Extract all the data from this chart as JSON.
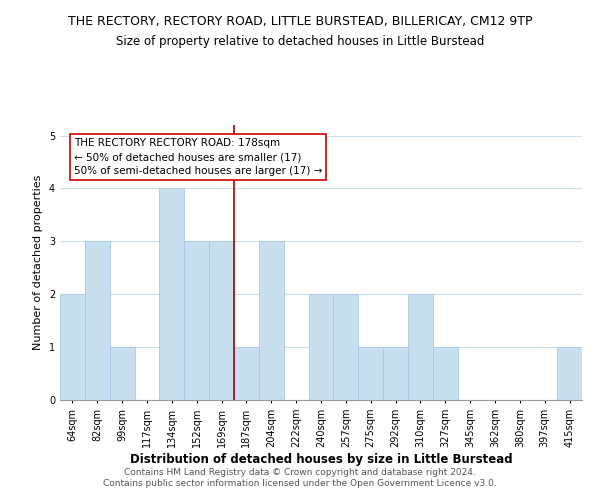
{
  "title": "THE RECTORY, RECTORY ROAD, LITTLE BURSTEAD, BILLERICAY, CM12 9TP",
  "subtitle": "Size of property relative to detached houses in Little Burstead",
  "xlabel": "Distribution of detached houses by size in Little Burstead",
  "ylabel": "Number of detached properties",
  "bar_color": "#c8dff0",
  "bar_edge_color": "#a8c8e8",
  "categories": [
    "64sqm",
    "82sqm",
    "99sqm",
    "117sqm",
    "134sqm",
    "152sqm",
    "169sqm",
    "187sqm",
    "204sqm",
    "222sqm",
    "240sqm",
    "257sqm",
    "275sqm",
    "292sqm",
    "310sqm",
    "327sqm",
    "345sqm",
    "362sqm",
    "380sqm",
    "397sqm",
    "415sqm"
  ],
  "values": [
    2,
    3,
    1,
    0,
    4,
    3,
    3,
    1,
    3,
    0,
    2,
    2,
    1,
    1,
    2,
    1,
    0,
    0,
    0,
    0,
    1
  ],
  "vline_x": 7,
  "vline_color": "#aa0000",
  "annotation_text": "THE RECTORY RECTORY ROAD: 178sqm\n← 50% of detached houses are smaller (17)\n50% of semi-detached houses are larger (17) →",
  "ylim": [
    0,
    5.2
  ],
  "yticks": [
    0,
    1,
    2,
    3,
    4,
    5
  ],
  "footer_text": "Contains HM Land Registry data © Crown copyright and database right 2024.\nContains public sector information licensed under the Open Government Licence v3.0.",
  "background_color": "#ffffff",
  "grid_color": "#c8dff0",
  "title_fontsize": 9,
  "subtitle_fontsize": 8.5,
  "xlabel_fontsize": 8.5,
  "ylabel_fontsize": 8,
  "tick_fontsize": 7,
  "annotation_fontsize": 7.5,
  "footer_fontsize": 6.5
}
